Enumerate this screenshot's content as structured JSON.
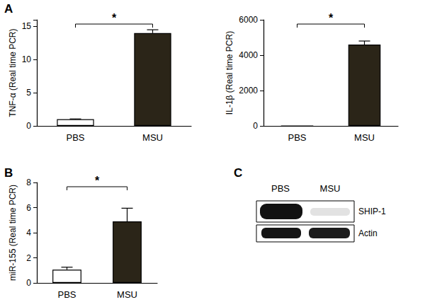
{
  "chart_data": [
    {
      "type": "bar",
      "y_label": "TNF-α (Real time PCR)",
      "categories": [
        "PBS",
        "MSU"
      ],
      "values": [
        1.0,
        14.0
      ],
      "errors": [
        0.05,
        0.5
      ],
      "colors": [
        "#ffffff",
        "#2b2518"
      ],
      "ylim": [
        0,
        16
      ],
      "yticks": [
        0,
        5,
        10,
        15
      ],
      "annotation": "*"
    },
    {
      "type": "bar",
      "y_label": "IL-1β (Real time PCR)",
      "categories": [
        "PBS",
        "MSU"
      ],
      "values": [
        1,
        4600
      ],
      "errors": [
        0,
        200
      ],
      "colors": [
        "#ffffff",
        "#2b2518"
      ],
      "ylim": [
        0,
        6000
      ],
      "yticks": [
        0,
        2000,
        4000,
        6000
      ],
      "annotation": "*"
    },
    {
      "type": "bar",
      "y_label": "miR-155 (Real time PCR)",
      "categories": [
        "PBS",
        "MSU"
      ],
      "values": [
        1.05,
        4.9
      ],
      "errors": [
        0.2,
        1.05
      ],
      "colors": [
        "#ffffff",
        "#2b2518"
      ],
      "ylim": [
        0,
        8
      ],
      "yticks": [
        0,
        2,
        4,
        6,
        8
      ],
      "annotation": "*"
    }
  ],
  "panel_labels": [
    "A",
    "B",
    "C"
  ],
  "blot": {
    "lanes": [
      "PBS",
      "MSU"
    ],
    "bands": [
      "SHIP-1",
      "Actin"
    ]
  }
}
